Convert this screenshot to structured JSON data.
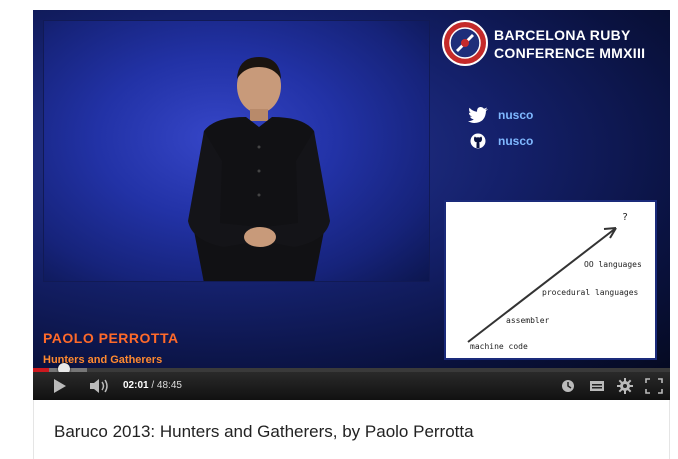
{
  "conference": {
    "line1": "BARCELONA RUBY",
    "line2": "CONFERENCE MMXIII"
  },
  "social": [
    {
      "icon": "twitter-icon",
      "handle": "nusco"
    },
    {
      "icon": "github-icon",
      "handle": "nusco"
    }
  ],
  "whiteboard": {
    "top_label": "?",
    "labels": [
      "OO languages",
      "procedural languages",
      "assembler",
      "machine code"
    ]
  },
  "lower_third": {
    "speaker": "PAOLO PERROTTA",
    "talk": "Hunters and Gatherers"
  },
  "player": {
    "current_time": "02:01",
    "separator": " / ",
    "duration": "48:45",
    "progress_fraction": 0.041,
    "icons": [
      "play-icon",
      "volume-icon",
      "watch-later-icon",
      "captions-icon",
      "settings-gear-icon",
      "fullscreen-icon"
    ]
  },
  "video_title": "Baruco 2013: Hunters and Gatherers, by Paolo Perrotta",
  "colors": {
    "accent_orange": "#ff6a2a",
    "handle_blue": "#7fb8ff",
    "progress_red": "#cc181e"
  }
}
